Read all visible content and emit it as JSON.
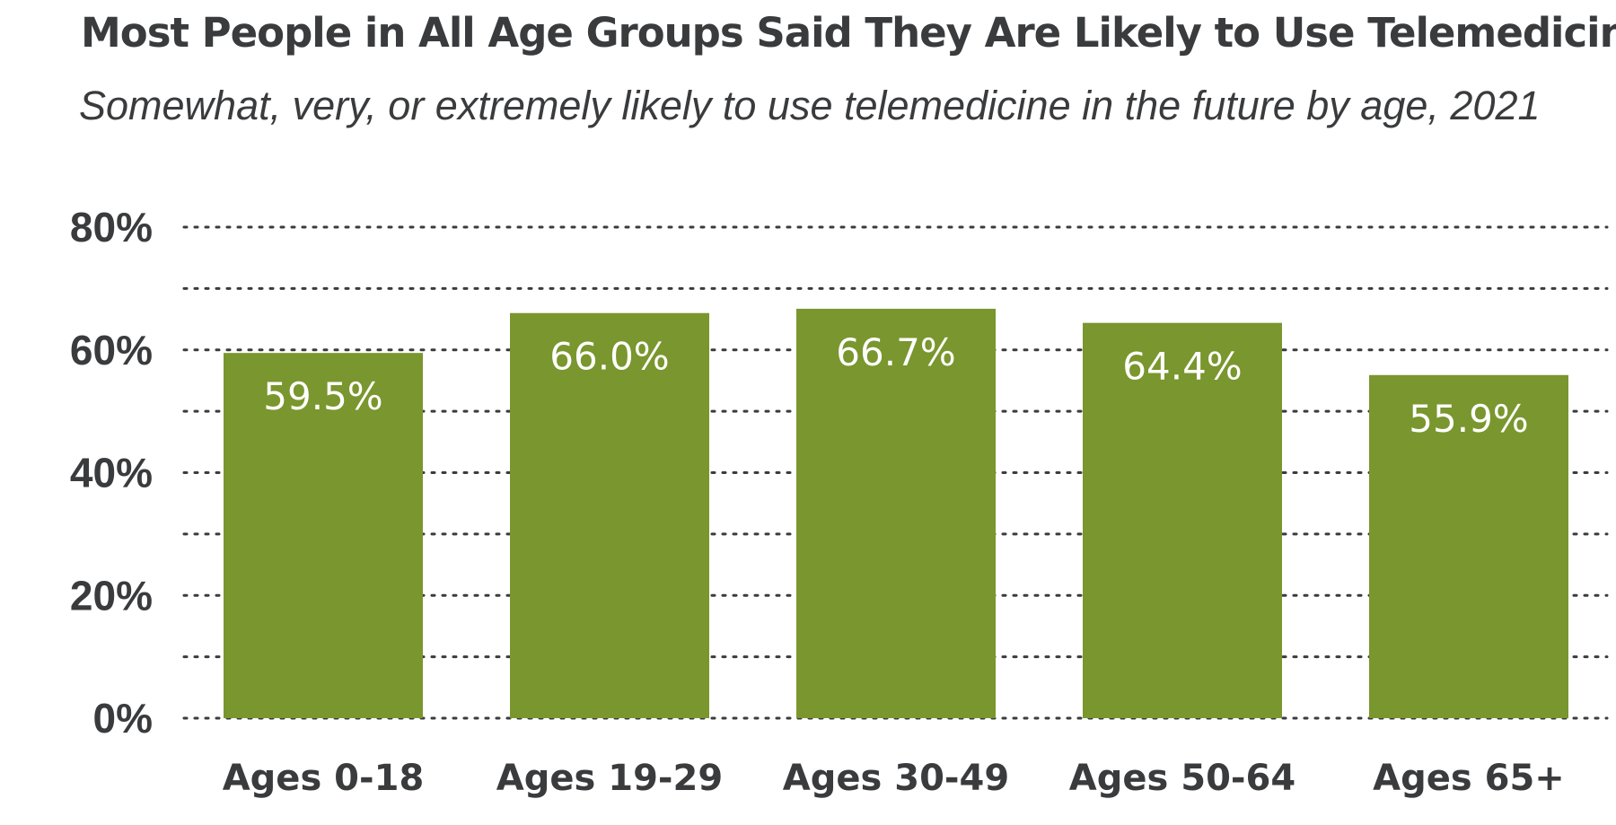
{
  "chart_data": {
    "type": "bar",
    "title": "Most People in All Age Groups Said They Are Likely to Use Telemedicine",
    "subtitle": "Somewhat, very, or extremely likely to use telemedicine in the future by age, 2021",
    "categories": [
      "Ages 0-18",
      "Ages 19-29",
      "Ages 30-49",
      "Ages 50-64",
      "Ages 65+"
    ],
    "values": [
      59.5,
      66.0,
      66.7,
      64.4,
      55.9
    ],
    "value_labels": [
      "59.5%",
      "66.0%",
      "66.7%",
      "64.4%",
      "55.9%"
    ],
    "ylim": [
      0,
      80
    ],
    "yticks": [
      0,
      20,
      40,
      60,
      80
    ],
    "ytick_labels": [
      "0%",
      "20%",
      "40%",
      "60%",
      "80%"
    ],
    "grid_values": [
      0,
      10,
      20,
      30,
      40,
      50,
      60,
      70,
      80
    ],
    "grid": "dotted",
    "bar_color": "#7a962e",
    "text_color": "#3a3b3d",
    "grid_color": "#3a3b3d"
  }
}
